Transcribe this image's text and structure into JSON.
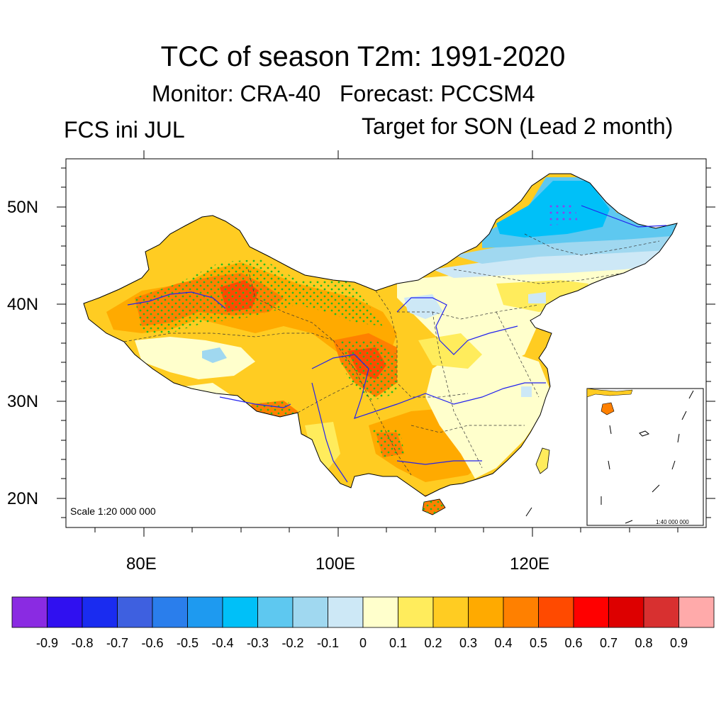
{
  "title": "TCC of season T2m: 1991-2020",
  "subtitle_left": "Monitor: CRA-40",
  "subtitle_right": "Forecast: PCCSM4",
  "left_label": "FCS ini JUL",
  "right_label": "Target for SON (Lead 2 month)",
  "scale_text": "Scale 1:20 000 000",
  "inset_scale_text": "1:40 000 000",
  "lat_labels": [
    "50N",
    "40N",
    "30N",
    "20N"
  ],
  "lon_labels": [
    "80E",
    "100E",
    "120E"
  ],
  "colorbar": {
    "colors": [
      "#8a2be2",
      "#3010f0",
      "#1a2cf0",
      "#3e60e0",
      "#2a7eec",
      "#1e9af0",
      "#00c0f8",
      "#5ec8f0",
      "#a0d8f0",
      "#cde8f6",
      "#ffffcc",
      "#ffec5c",
      "#ffcc22",
      "#ffaa00",
      "#ff8000",
      "#ff4a00",
      "#ff0000",
      "#dd0000",
      "#d83030",
      "#ffaaaa"
    ],
    "labels": [
      "-0.9",
      "-0.8",
      "-0.7",
      "-0.6",
      "-0.5",
      "-0.4",
      "-0.3",
      "-0.2",
      "-0.1",
      "0",
      "0.1",
      "0.2",
      "0.3",
      "0.4",
      "0.5",
      "0.6",
      "0.7",
      "0.8",
      "0.9"
    ]
  },
  "colors": {
    "stipple": "#22bb22",
    "river": "#2222ee",
    "stipple_negative": "#8844ee"
  }
}
